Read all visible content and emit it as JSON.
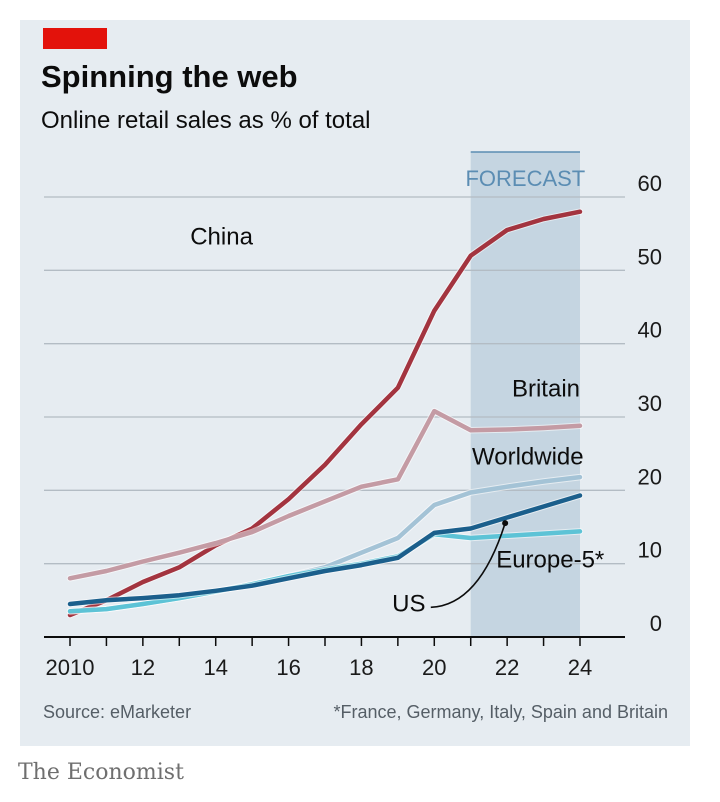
{
  "header": {
    "title": "Spinning the web",
    "subtitle": "Online retail sales as % of total"
  },
  "footer": {
    "source": "Source: eMarketer",
    "footnote": "*France, Germany, Italy, Spain and Britain",
    "brand": "The Economist"
  },
  "colors": {
    "panel_bg": "#e6ecf1",
    "brand_red": "#e3120b",
    "forecast_shade": "#c5d5e1",
    "forecast_label": "#5b8db3",
    "grid": "#b3bcc4"
  },
  "chart_data": {
    "type": "line",
    "title": "Spinning the web",
    "subtitle": "Online retail sales as % of total",
    "xlabel": "",
    "ylabel": "",
    "x_tick_labels": [
      "2010",
      "12",
      "14",
      "16",
      "18",
      "20",
      "22",
      "24"
    ],
    "x_tick_values": [
      2010,
      2012,
      2014,
      2016,
      2018,
      2020,
      2022,
      2024
    ],
    "xlim": [
      2010,
      2024
    ],
    "ylim": [
      0,
      60
    ],
    "y_ticks": [
      0,
      10,
      20,
      30,
      40,
      50,
      60
    ],
    "y_axis_side": "right",
    "grid": true,
    "forecast": {
      "label": "FORECAST",
      "from": 2021,
      "to": 2024
    },
    "x": [
      2010,
      2011,
      2012,
      2013,
      2014,
      2015,
      2016,
      2017,
      2018,
      2019,
      2020,
      2021,
      2022,
      2023,
      2024
    ],
    "series": [
      {
        "name": "China",
        "color": "#a3343f",
        "width": 4.5,
        "label_x": 2013.3,
        "label_y": 53.5,
        "label_anchor": "start",
        "values": [
          3,
          5,
          7.5,
          9.5,
          12.5,
          14.8,
          18.8,
          23.5,
          29,
          34,
          44.5,
          52,
          55.5,
          57,
          58
        ]
      },
      {
        "name": "Britain",
        "color": "#c49ba4",
        "width": 4.5,
        "label_x": 2024,
        "label_y": 32.8,
        "label_anchor": "end",
        "values": [
          8,
          9,
          10.3,
          11.5,
          12.8,
          14.3,
          16.5,
          18.5,
          20.5,
          21.5,
          30.8,
          28.2,
          28.3,
          28.5,
          28.8
        ]
      },
      {
        "name": "Worldwide",
        "color": "#a4c3d6",
        "width": 4.5,
        "label_x": 2024.1,
        "label_y": 23.5,
        "label_anchor": "end",
        "values": [
          3.5,
          3.8,
          4.5,
          5.3,
          6.2,
          7.2,
          8.3,
          9.5,
          11.5,
          13.5,
          18,
          19.7,
          20.5,
          21.2,
          21.8
        ]
      },
      {
        "name": "Europe-5*",
        "color": "#5dc3d6",
        "width": 4.5,
        "label_x": 2021.7,
        "label_y": 9.5,
        "label_anchor": "start",
        "values": [
          3.5,
          3.8,
          4.5,
          5.3,
          6.2,
          7.2,
          8.3,
          9.2,
          10,
          11,
          14,
          13.5,
          13.8,
          14.1,
          14.4
        ]
      },
      {
        "name": "US",
        "color": "#1b5f8c",
        "width": 4.5,
        "label_x": 2019.3,
        "label_y": 3.5,
        "label_anchor": "middle",
        "values": [
          4.5,
          5,
          5.3,
          5.7,
          6.3,
          7,
          8,
          9,
          9.8,
          10.8,
          14.2,
          14.8,
          16.3,
          17.8,
          19.3
        ]
      }
    ],
    "annotation": {
      "text": "US",
      "points_to_x": 2022,
      "points_to_y": 15.8
    }
  }
}
